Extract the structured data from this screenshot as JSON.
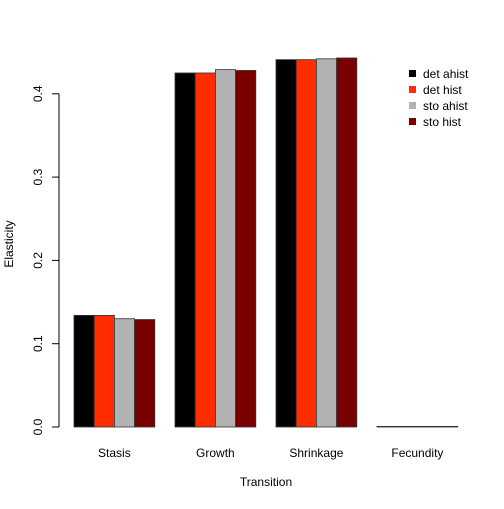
{
  "chart_data": {
    "type": "bar",
    "title": "",
    "xlabel": "Transition",
    "ylabel": "Elasticity",
    "categories": [
      "Stasis",
      "Growth",
      "Shrinkage",
      "Fecundity"
    ],
    "series": [
      {
        "name": "det ahist",
        "color": "#000000",
        "values": [
          0.134,
          0.425,
          0.441,
          0.0002
        ]
      },
      {
        "name": "det hist",
        "color": "#ff2d00",
        "values": [
          0.134,
          0.425,
          0.441,
          0.0002
        ]
      },
      {
        "name": "sto ahist",
        "color": "#b2b2b2",
        "values": [
          0.13,
          0.429,
          0.442,
          0.0002
        ]
      },
      {
        "name": "sto hist",
        "color": "#7a0000",
        "values": [
          0.129,
          0.428,
          0.443,
          0.0002
        ]
      }
    ],
    "yticks": [
      0.0,
      0.1,
      0.2,
      0.3,
      0.4
    ],
    "ytick_labels": [
      "0.0",
      "0.1",
      "0.2",
      "0.3",
      "0.4"
    ],
    "ylim": [
      0,
      0.46
    ],
    "grid": false,
    "legend_position": "top-right"
  }
}
